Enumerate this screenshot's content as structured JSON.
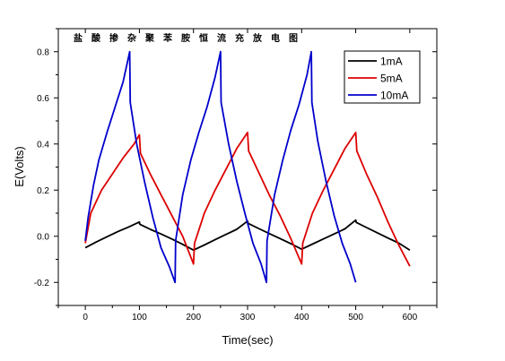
{
  "chart_data": {
    "type": "line",
    "title": "盐酸掺杂聚苯胺恒流充放电图",
    "xlabel": "Time(sec)",
    "ylabel": "E(Volts)",
    "xlim": [
      -50,
      650
    ],
    "ylim": [
      -0.3,
      0.9
    ],
    "xticks": [
      0,
      100,
      200,
      300,
      400,
      500,
      600
    ],
    "yticks": [
      -0.2,
      0.0,
      0.2,
      0.4,
      0.6,
      0.8
    ],
    "xtick_labels": [
      "0",
      "100",
      "200",
      "300",
      "400",
      "500",
      "600"
    ],
    "ytick_labels": [
      "-0.2",
      "0.0",
      "0.2",
      "0.4",
      "0.6",
      "0.8"
    ],
    "grid": false,
    "legend_position": "top-right",
    "series": [
      {
        "name": "1mA",
        "color": "#000000",
        "x": [
          0,
          20,
          40,
          60,
          80,
          100,
          101,
          120,
          140,
          160,
          180,
          200,
          220,
          240,
          260,
          280,
          300,
          301,
          320,
          340,
          360,
          380,
          400,
          420,
          440,
          460,
          480,
          500,
          501,
          520,
          540,
          560,
          580,
          600
        ],
        "y": [
          -0.05,
          -0.025,
          -0.002,
          0.02,
          0.04,
          0.062,
          0.052,
          0.03,
          0.01,
          -0.012,
          -0.035,
          -0.06,
          -0.038,
          -0.015,
          0.008,
          0.03,
          0.066,
          0.056,
          0.034,
          0.012,
          -0.01,
          -0.032,
          -0.056,
          -0.034,
          -0.012,
          0.01,
          0.032,
          0.07,
          0.06,
          0.038,
          0.015,
          -0.008,
          -0.03,
          -0.06
        ]
      },
      {
        "name": "5mA",
        "color": "#dd0000",
        "x": [
          0,
          10,
          30,
          50,
          70,
          90,
          100,
          102,
          120,
          140,
          160,
          180,
          200,
          202,
          220,
          240,
          260,
          280,
          300,
          302,
          320,
          340,
          360,
          380,
          400,
          402,
          420,
          440,
          460,
          480,
          500,
          502,
          520,
          540,
          560,
          580,
          600
        ],
        "y": [
          -0.03,
          0.1,
          0.2,
          0.27,
          0.34,
          0.4,
          0.44,
          0.36,
          0.27,
          0.18,
          0.09,
          0.0,
          -0.12,
          -0.03,
          0.1,
          0.2,
          0.29,
          0.38,
          0.45,
          0.37,
          0.28,
          0.18,
          0.09,
          -0.01,
          -0.12,
          -0.03,
          0.1,
          0.2,
          0.29,
          0.38,
          0.45,
          0.37,
          0.27,
          0.17,
          0.06,
          -0.04,
          -0.13
        ]
      },
      {
        "name": "10mA",
        "color": "#0000cc",
        "x": [
          0,
          5,
          15,
          25,
          40,
          55,
          70,
          82,
          83,
          95,
          110,
          125,
          140,
          155,
          166,
          167,
          180,
          195,
          210,
          225,
          240,
          250,
          251,
          265,
          280,
          295,
          310,
          325,
          335,
          336,
          350,
          365,
          380,
          395,
          410,
          418,
          419,
          430,
          445,
          460,
          475,
          490,
          500
        ],
        "y": [
          -0.02,
          0.08,
          0.22,
          0.33,
          0.45,
          0.56,
          0.67,
          0.8,
          0.58,
          0.4,
          0.23,
          0.08,
          -0.05,
          -0.13,
          -0.2,
          -0.02,
          0.18,
          0.33,
          0.45,
          0.56,
          0.69,
          0.8,
          0.58,
          0.4,
          0.24,
          0.1,
          -0.03,
          -0.12,
          -0.2,
          -0.02,
          0.18,
          0.33,
          0.46,
          0.57,
          0.7,
          0.8,
          0.58,
          0.41,
          0.24,
          0.09,
          -0.03,
          -0.12,
          -0.2
        ]
      }
    ]
  }
}
